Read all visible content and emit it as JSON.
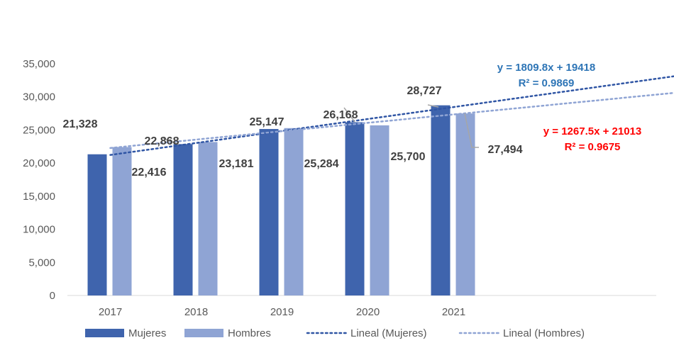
{
  "chart_data": {
    "type": "bar",
    "categories": [
      "2017",
      "2018",
      "2019",
      "2020",
      "2021"
    ],
    "series": [
      {
        "name": "Mujeres",
        "values": [
          21328,
          22868,
          25147,
          26168,
          28727
        ],
        "labels": [
          "21,328",
          "22,868",
          "25,147",
          "26,168",
          "28,727"
        ],
        "color": "#3F64AD"
      },
      {
        "name": "Hombres",
        "values": [
          22416,
          23181,
          25284,
          25700,
          27494
        ],
        "labels": [
          "22,416",
          "23,181",
          "25,284",
          "25,700",
          "27,494"
        ],
        "color": "#8FA4D4"
      }
    ],
    "trendlines": [
      {
        "name": "Lineal (Mujeres)",
        "slope": 1809.8,
        "intercept": 19418,
        "equation": "y = 1809.8x + 19418",
        "r2": "R² = 0.9869",
        "color": "#2F55A4",
        "eq_color": "#2E75B6",
        "forecast_forward": 2
      },
      {
        "name": "Lineal (Hombres)",
        "slope": 1267.5,
        "intercept": 21013,
        "equation": "y = 1267.5x + 21013",
        "r2": "R² = 0.9675",
        "color": "#8FA4D4",
        "eq_color": "#FF0000",
        "forecast_forward": 2
      }
    ],
    "y_ticks": [
      "0",
      "5,000",
      "10,000",
      "15,000",
      "20,000",
      "25,000",
      "30,000",
      "35,000"
    ],
    "ylim": [
      0,
      35000
    ],
    "grid": false,
    "legend_position": "bottom",
    "title": "",
    "xlabel": "",
    "ylabel": ""
  }
}
